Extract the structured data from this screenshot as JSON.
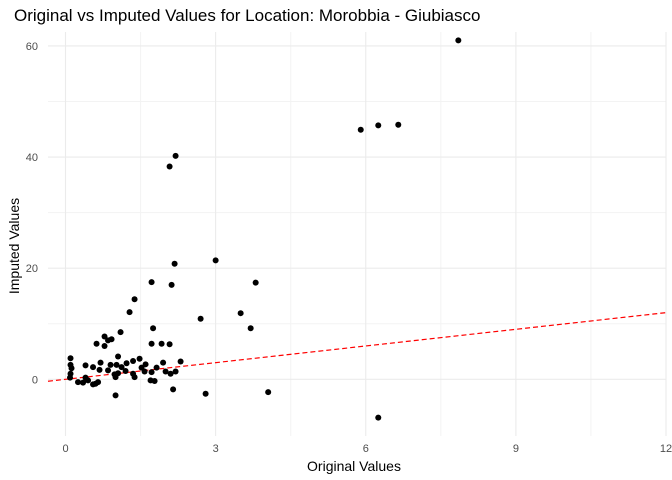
{
  "chart_data": {
    "type": "scatter",
    "title": "Original vs Imputed Values for Location: Morobbia - Giubiasco",
    "xlabel": "Original Values",
    "ylabel": "Imputed Values",
    "xlim": [
      -0.35,
      12
    ],
    "ylim": [
      -10.2,
      62.5
    ],
    "x_ticks": [
      0,
      3,
      6,
      9,
      12
    ],
    "x_tick_labels": [
      "0",
      "3",
      "6",
      "9",
      "12"
    ],
    "y_ticks": [
      0,
      20,
      40,
      60
    ],
    "y_tick_labels": [
      "0",
      "20",
      "40",
      "60"
    ],
    "grid": true,
    "point_color": "#000000",
    "reference_line": {
      "type": "y=x",
      "style": "dashed",
      "color": "#ff0000"
    },
    "points": [
      [
        7.85,
        61.0
      ],
      [
        6.65,
        45.8
      ],
      [
        6.25,
        45.7
      ],
      [
        5.9,
        44.9
      ],
      [
        2.2,
        40.2
      ],
      [
        2.08,
        38.3
      ],
      [
        3.0,
        21.4
      ],
      [
        2.18,
        20.8
      ],
      [
        2.12,
        17.0
      ],
      [
        1.72,
        17.5
      ],
      [
        3.8,
        17.4
      ],
      [
        1.38,
        14.4
      ],
      [
        1.28,
        12.1
      ],
      [
        3.5,
        11.9
      ],
      [
        2.7,
        10.9
      ],
      [
        1.75,
        9.2
      ],
      [
        3.7,
        9.2
      ],
      [
        1.1,
        8.5
      ],
      [
        0.78,
        7.7
      ],
      [
        0.92,
        7.2
      ],
      [
        0.85,
        7.0
      ],
      [
        0.62,
        6.4
      ],
      [
        0.78,
        6.0
      ],
      [
        1.72,
        6.4
      ],
      [
        1.92,
        6.4
      ],
      [
        2.08,
        6.3
      ],
      [
        1.05,
        4.1
      ],
      [
        1.48,
        3.7
      ],
      [
        1.35,
        3.3
      ],
      [
        1.22,
        2.9
      ],
      [
        1.6,
        2.7
      ],
      [
        0.9,
        2.6
      ],
      [
        0.7,
        3.0
      ],
      [
        1.02,
        2.6
      ],
      [
        1.12,
        2.2
      ],
      [
        1.52,
        2.1
      ],
      [
        1.82,
        2.1
      ],
      [
        1.95,
        3.0
      ],
      [
        2.3,
        3.2
      ],
      [
        0.4,
        2.5
      ],
      [
        0.55,
        2.2
      ],
      [
        0.1,
        3.8
      ],
      [
        0.1,
        2.6
      ],
      [
        0.12,
        2.0
      ],
      [
        0.1,
        1.0
      ],
      [
        0.09,
        0.3
      ],
      [
        0.25,
        -0.5
      ],
      [
        0.35,
        -0.6
      ],
      [
        0.45,
        -0.2
      ],
      [
        0.55,
        -0.9
      ],
      [
        0.6,
        -0.8
      ],
      [
        0.65,
        -0.5
      ],
      [
        0.4,
        0.3
      ],
      [
        0.85,
        1.6
      ],
      [
        0.98,
        0.9
      ],
      [
        1.05,
        1.1
      ],
      [
        1.2,
        1.5
      ],
      [
        1.35,
        1.0
      ],
      [
        1.38,
        0.4
      ],
      [
        1.0,
        0.4
      ],
      [
        0.68,
        1.7
      ],
      [
        1.58,
        1.4
      ],
      [
        1.72,
        1.3
      ],
      [
        2.0,
        1.4
      ],
      [
        2.1,
        1.0
      ],
      [
        2.2,
        1.4
      ],
      [
        1.7,
        -0.2
      ],
      [
        1.78,
        -0.3
      ],
      [
        2.15,
        -1.8
      ],
      [
        1.0,
        -2.9
      ],
      [
        2.8,
        -2.6
      ],
      [
        4.05,
        -2.3
      ],
      [
        6.25,
        -6.9
      ]
    ]
  }
}
